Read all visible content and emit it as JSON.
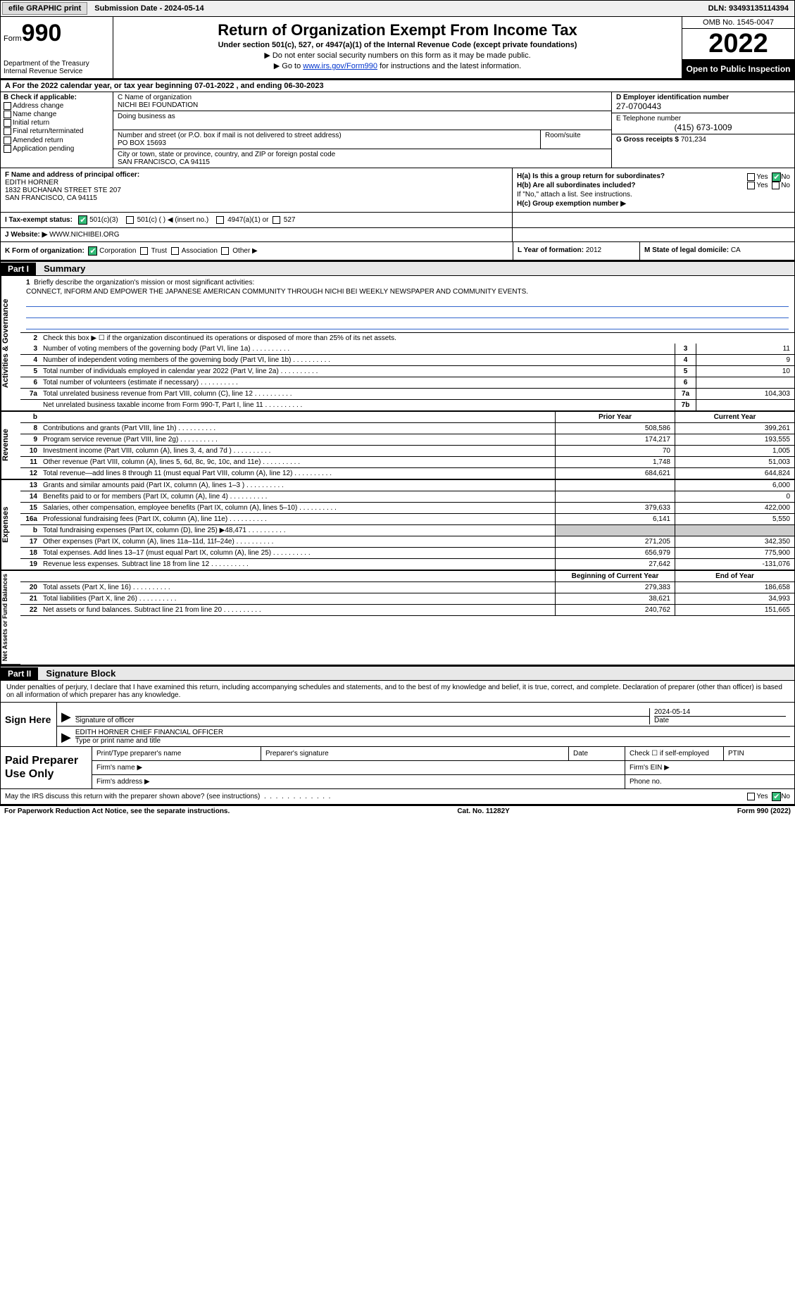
{
  "topbar": {
    "efile_btn": "efile GRAPHIC print",
    "sub_date_label": "Submission Date - 2024-05-14",
    "dln": "DLN: 93493135114394"
  },
  "header": {
    "form_label": "Form",
    "form_number": "990",
    "dept": "Department of the Treasury\nInternal Revenue Service",
    "title": "Return of Organization Exempt From Income Tax",
    "sub1": "Under section 501(c), 527, or 4947(a)(1) of the Internal Revenue Code (except private foundations)",
    "sub2": "▶ Do not enter social security numbers on this form as it may be made public.",
    "sub3_pre": "▶ Go to ",
    "sub3_link": "www.irs.gov/Form990",
    "sub3_post": " for instructions and the latest information.",
    "omb": "OMB No. 1545-0047",
    "year": "2022",
    "open": "Open to Public Inspection"
  },
  "line_a": "A For the 2022 calendar year, or tax year beginning 07-01-2022    , and ending 06-30-2023",
  "col_b": {
    "header": "B Check if applicable:",
    "items": [
      "Address change",
      "Name change",
      "Initial return",
      "Final return/terminated",
      "Amended return",
      "Application pending"
    ]
  },
  "col_c": {
    "name_label": "C Name of organization",
    "name": "NICHI BEI FOUNDATION",
    "dba_label": "Doing business as",
    "addr_label": "Number and street (or P.O. box if mail is not delivered to street address)",
    "addr": "PO BOX 15693",
    "room_label": "Room/suite",
    "city_label": "City or town, state or province, country, and ZIP or foreign postal code",
    "city": "SAN FRANCISCO, CA  94115"
  },
  "col_d": {
    "ein_label": "D Employer identification number",
    "ein": "27-0700443",
    "phone_label": "E Telephone number",
    "phone": "(415) 673-1009",
    "gross_label": "G Gross receipts $",
    "gross": "701,234"
  },
  "row_f": {
    "label": "F Name and address of principal officer:",
    "name": "EDITH HORNER",
    "addr1": "1832 BUCHANAN STREET STE 207",
    "addr2": "SAN FRANCISCO, CA  94115"
  },
  "row_h": {
    "ha": "H(a)  Is this a group return for subordinates?",
    "hb": "H(b)  Are all subordinates included?",
    "hb_note": "If \"No,\" attach a list. See instructions.",
    "hc": "H(c)  Group exemption number ▶",
    "yes": "Yes",
    "no": "No"
  },
  "row_i": {
    "label": "I  Tax-exempt status:",
    "opt1": "501(c)(3)",
    "opt2": "501(c) (  ) ◀ (insert no.)",
    "opt3": "4947(a)(1) or",
    "opt4": "527"
  },
  "row_j": {
    "label": "J  Website: ▶",
    "value": "WWW.NICHIBEI.ORG"
  },
  "row_k": {
    "left_label": "K Form of organization:",
    "corp": "Corporation",
    "trust": "Trust",
    "assoc": "Association",
    "other": "Other ▶",
    "year_label": "L Year of formation:",
    "year": "2012",
    "state_label": "M State of legal domicile:",
    "state": "CA"
  },
  "part1": {
    "part": "Part I",
    "title": "Summary"
  },
  "summary": {
    "line1_label": "Briefly describe the organization's mission or most significant activities:",
    "line1_text": "CONNECT, INFORM AND EMPOWER THE JAPANESE AMERICAN COMMUNITY THROUGH NICHI BEI WEEKLY NEWSPAPER AND COMMUNITY EVENTS.",
    "line2": "Check this box ▶ ☐  if the organization discontinued its operations or disposed of more than 25% of its net assets.",
    "rows_single": [
      {
        "n": "3",
        "t": "Number of voting members of the governing body (Part VI, line 1a)",
        "box": "3",
        "v": "11"
      },
      {
        "n": "4",
        "t": "Number of independent voting members of the governing body (Part VI, line 1b)",
        "box": "4",
        "v": "9"
      },
      {
        "n": "5",
        "t": "Total number of individuals employed in calendar year 2022 (Part V, line 2a)",
        "box": "5",
        "v": "10"
      },
      {
        "n": "6",
        "t": "Total number of volunteers (estimate if necessary)",
        "box": "6",
        "v": ""
      },
      {
        "n": "7a",
        "t": "Total unrelated business revenue from Part VIII, column (C), line 12",
        "box": "7a",
        "v": "104,303"
      },
      {
        "n": "",
        "t": "Net unrelated business taxable income from Form 990-T, Part I, line 11",
        "box": "7b",
        "v": ""
      }
    ],
    "prior_label": "Prior Year",
    "current_label": "Current Year",
    "rev_rows": [
      {
        "n": "8",
        "t": "Contributions and grants (Part VIII, line 1h)",
        "p": "508,586",
        "c": "399,261"
      },
      {
        "n": "9",
        "t": "Program service revenue (Part VIII, line 2g)",
        "p": "174,217",
        "c": "193,555"
      },
      {
        "n": "10",
        "t": "Investment income (Part VIII, column (A), lines 3, 4, and 7d )",
        "p": "70",
        "c": "1,005"
      },
      {
        "n": "11",
        "t": "Other revenue (Part VIII, column (A), lines 5, 6d, 8c, 9c, 10c, and 11e)",
        "p": "1,748",
        "c": "51,003"
      },
      {
        "n": "12",
        "t": "Total revenue—add lines 8 through 11 (must equal Part VIII, column (A), line 12)",
        "p": "684,621",
        "c": "644,824"
      }
    ],
    "exp_rows": [
      {
        "n": "13",
        "t": "Grants and similar amounts paid (Part IX, column (A), lines 1–3 )",
        "p": "",
        "c": "6,000"
      },
      {
        "n": "14",
        "t": "Benefits paid to or for members (Part IX, column (A), line 4)",
        "p": "",
        "c": "0"
      },
      {
        "n": "15",
        "t": "Salaries, other compensation, employee benefits (Part IX, column (A), lines 5–10)",
        "p": "379,633",
        "c": "422,000"
      },
      {
        "n": "16a",
        "t": "Professional fundraising fees (Part IX, column (A), line 11e)",
        "p": "6,141",
        "c": "5,550"
      },
      {
        "n": "b",
        "t": "Total fundraising expenses (Part IX, column (D), line 25) ▶48,471",
        "p": "SHADED",
        "c": "SHADED"
      },
      {
        "n": "17",
        "t": "Other expenses (Part IX, column (A), lines 11a–11d, 11f–24e)",
        "p": "271,205",
        "c": "342,350"
      },
      {
        "n": "18",
        "t": "Total expenses. Add lines 13–17 (must equal Part IX, column (A), line 25)",
        "p": "656,979",
        "c": "775,900"
      },
      {
        "n": "19",
        "t": "Revenue less expenses. Subtract line 18 from line 12",
        "p": "27,642",
        "c": "-131,076"
      }
    ],
    "begin_label": "Beginning of Current Year",
    "end_label": "End of Year",
    "net_rows": [
      {
        "n": "20",
        "t": "Total assets (Part X, line 16)",
        "p": "279,383",
        "c": "186,658"
      },
      {
        "n": "21",
        "t": "Total liabilities (Part X, line 26)",
        "p": "38,621",
        "c": "34,993"
      },
      {
        "n": "22",
        "t": "Net assets or fund balances. Subtract line 21 from line 20",
        "p": "240,762",
        "c": "151,665"
      }
    ]
  },
  "side_labels": {
    "gov": "Activities & Governance",
    "rev": "Revenue",
    "exp": "Expenses",
    "net": "Net Assets or Fund Balances"
  },
  "part2": {
    "part": "Part II",
    "title": "Signature Block"
  },
  "signature": {
    "penalty": "Under penalties of perjury, I declare that I have examined this return, including accompanying schedules and statements, and to the best of my knowledge and belief, it is true, correct, and complete. Declaration of preparer (other than officer) is based on all information of which preparer has any knowledge.",
    "sign_here": "Sign Here",
    "sig_label": "Signature of officer",
    "date_label": "Date",
    "date_val": "2024-05-14",
    "name_val": "EDITH HORNER  CHIEF FINANCIAL OFFICER",
    "name_label": "Type or print name and title"
  },
  "preparer": {
    "label": "Paid Preparer Use Only",
    "print_name": "Print/Type preparer's name",
    "sig": "Preparer's signature",
    "date": "Date",
    "check_self": "Check ☐ if self-employed",
    "ptin": "PTIN",
    "firm_name": "Firm's name   ▶",
    "firm_ein": "Firm's EIN ▶",
    "firm_addr": "Firm's address ▶",
    "phone": "Phone no."
  },
  "discuss": {
    "text": "May the IRS discuss this return with the preparer shown above? (see instructions)",
    "yes": "Yes",
    "no": "No"
  },
  "footer": {
    "left": "For Paperwork Reduction Act Notice, see the separate instructions.",
    "mid": "Cat. No. 11282Y",
    "right": "Form 990 (2022)"
  }
}
